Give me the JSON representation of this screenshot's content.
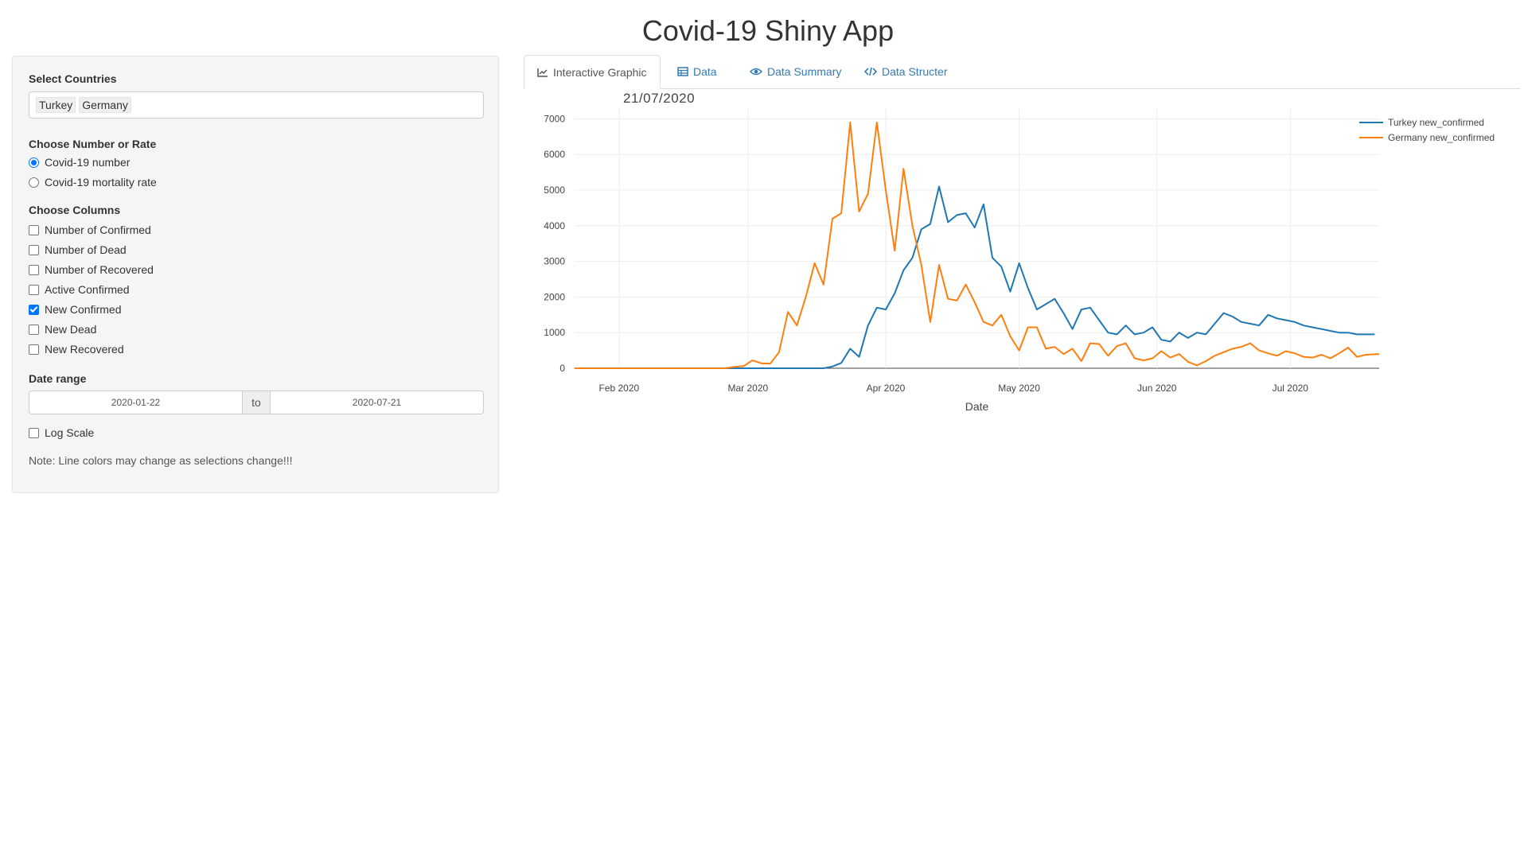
{
  "app": {
    "title": "Covid-19 Shiny App"
  },
  "sidebar": {
    "countries_label": "Select Countries",
    "countries": [
      "Turkey",
      "Germany"
    ],
    "number_rate_label": "Choose Number or Rate",
    "number_rate_options": [
      {
        "label": "Covid-19 number",
        "checked": true
      },
      {
        "label": "Covid-19 mortality rate",
        "checked": false
      }
    ],
    "columns_label": "Choose Columns",
    "columns": [
      {
        "label": "Number of Confirmed",
        "checked": false
      },
      {
        "label": "Number of Dead",
        "checked": false
      },
      {
        "label": "Number of Recovered",
        "checked": false
      },
      {
        "label": "Active Confirmed",
        "checked": false
      },
      {
        "label": "New Confirmed",
        "checked": true
      },
      {
        "label": "New Dead",
        "checked": false
      },
      {
        "label": "New Recovered",
        "checked": false
      }
    ],
    "date_range_label": "Date range",
    "date_start": "2020-01-22",
    "date_sep": "to",
    "date_end": "2020-07-21",
    "log_scale_label": "Log Scale",
    "log_scale_checked": false,
    "note": "Note: Line colors may change as selections change!!!"
  },
  "tabs": [
    {
      "label": "Interactive Graphic",
      "icon": "line-chart-icon",
      "active": true
    },
    {
      "label": "Data",
      "icon": "table-icon",
      "active": false
    },
    {
      "label": "Data Summary",
      "icon": "eye-icon",
      "active": false
    },
    {
      "label": "Data Structer",
      "icon": "code-icon",
      "active": false
    }
  ],
  "chart_date": "21/07/2020",
  "chart_data": {
    "type": "line",
    "title": "",
    "xlabel": "Date",
    "ylabel": "",
    "xlim": [
      "2020-01-22",
      "2020-07-21"
    ],
    "ylim": [
      0,
      7300
    ],
    "y_ticks": [
      0,
      1000,
      2000,
      3000,
      4000,
      5000,
      6000,
      7000
    ],
    "x_ticks": [
      {
        "date": "2020-02-01",
        "label": "Feb 2020"
      },
      {
        "date": "2020-03-01",
        "label": "Mar 2020"
      },
      {
        "date": "2020-04-01",
        "label": "Apr 2020"
      },
      {
        "date": "2020-05-01",
        "label": "May 2020"
      },
      {
        "date": "2020-06-01",
        "label": "Jun 2020"
      },
      {
        "date": "2020-07-01",
        "label": "Jul 2020"
      }
    ],
    "grid": true,
    "legend_position": "top-right",
    "series": [
      {
        "name": "Turkey new_confirmed",
        "color": "#1f77b4",
        "points": [
          [
            "2020-01-22",
            0
          ],
          [
            "2020-03-10",
            0
          ],
          [
            "2020-03-18",
            0
          ],
          [
            "2020-03-20",
            50
          ],
          [
            "2020-03-22",
            150
          ],
          [
            "2020-03-24",
            550
          ],
          [
            "2020-03-26",
            320
          ],
          [
            "2020-03-28",
            1200
          ],
          [
            "2020-03-30",
            1700
          ],
          [
            "2020-04-01",
            1650
          ],
          [
            "2020-04-03",
            2100
          ],
          [
            "2020-04-05",
            2750
          ],
          [
            "2020-04-07",
            3100
          ],
          [
            "2020-04-09",
            3900
          ],
          [
            "2020-04-11",
            4050
          ],
          [
            "2020-04-13",
            5100
          ],
          [
            "2020-04-15",
            4100
          ],
          [
            "2020-04-17",
            4300
          ],
          [
            "2020-04-19",
            4350
          ],
          [
            "2020-04-21",
            3950
          ],
          [
            "2020-04-23",
            4600
          ],
          [
            "2020-04-25",
            3100
          ],
          [
            "2020-04-27",
            2850
          ],
          [
            "2020-04-29",
            2150
          ],
          [
            "2020-05-01",
            2950
          ],
          [
            "2020-05-03",
            2250
          ],
          [
            "2020-05-05",
            1650
          ],
          [
            "2020-05-07",
            1800
          ],
          [
            "2020-05-09",
            1950
          ],
          [
            "2020-05-11",
            1550
          ],
          [
            "2020-05-13",
            1100
          ],
          [
            "2020-05-15",
            1650
          ],
          [
            "2020-05-17",
            1700
          ],
          [
            "2020-05-19",
            1350
          ],
          [
            "2020-05-21",
            1000
          ],
          [
            "2020-05-23",
            950
          ],
          [
            "2020-05-25",
            1200
          ],
          [
            "2020-05-27",
            950
          ],
          [
            "2020-05-29",
            1000
          ],
          [
            "2020-05-31",
            1150
          ],
          [
            "2020-06-02",
            800
          ],
          [
            "2020-06-04",
            750
          ],
          [
            "2020-06-06",
            1000
          ],
          [
            "2020-06-08",
            850
          ],
          [
            "2020-06-10",
            1000
          ],
          [
            "2020-06-12",
            950
          ],
          [
            "2020-06-14",
            1250
          ],
          [
            "2020-06-16",
            1550
          ],
          [
            "2020-06-18",
            1450
          ],
          [
            "2020-06-20",
            1300
          ],
          [
            "2020-06-22",
            1250
          ],
          [
            "2020-06-24",
            1200
          ],
          [
            "2020-06-26",
            1500
          ],
          [
            "2020-06-28",
            1400
          ],
          [
            "2020-06-30",
            1350
          ],
          [
            "2020-07-02",
            1300
          ],
          [
            "2020-07-04",
            1200
          ],
          [
            "2020-07-06",
            1150
          ],
          [
            "2020-07-08",
            1100
          ],
          [
            "2020-07-10",
            1050
          ],
          [
            "2020-07-12",
            1000
          ],
          [
            "2020-07-14",
            1000
          ],
          [
            "2020-07-16",
            950
          ],
          [
            "2020-07-18",
            950
          ],
          [
            "2020-07-20",
            950
          ]
        ]
      },
      {
        "name": "Germany new_confirmed",
        "color": "#ff7f0e",
        "points": [
          [
            "2020-01-22",
            0
          ],
          [
            "2020-02-25",
            0
          ],
          [
            "2020-02-27",
            40
          ],
          [
            "2020-02-29",
            60
          ],
          [
            "2020-03-02",
            220
          ],
          [
            "2020-03-04",
            140
          ],
          [
            "2020-03-06",
            130
          ],
          [
            "2020-03-08",
            450
          ],
          [
            "2020-03-10",
            1580
          ],
          [
            "2020-03-12",
            1200
          ],
          [
            "2020-03-14",
            2000
          ],
          [
            "2020-03-16",
            2950
          ],
          [
            "2020-03-18",
            2350
          ],
          [
            "2020-03-20",
            4200
          ],
          [
            "2020-03-22",
            4350
          ],
          [
            "2020-03-24",
            6900
          ],
          [
            "2020-03-26",
            4400
          ],
          [
            "2020-03-28",
            4900
          ],
          [
            "2020-03-30",
            6900
          ],
          [
            "2020-04-01",
            5000
          ],
          [
            "2020-04-03",
            3300
          ],
          [
            "2020-04-05",
            5600
          ],
          [
            "2020-04-07",
            4000
          ],
          [
            "2020-04-09",
            2900
          ],
          [
            "2020-04-11",
            1300
          ],
          [
            "2020-04-13",
            2900
          ],
          [
            "2020-04-15",
            1950
          ],
          [
            "2020-04-17",
            1900
          ],
          [
            "2020-04-19",
            2350
          ],
          [
            "2020-04-21",
            1850
          ],
          [
            "2020-04-23",
            1300
          ],
          [
            "2020-04-25",
            1200
          ],
          [
            "2020-04-27",
            1500
          ],
          [
            "2020-04-29",
            900
          ],
          [
            "2020-05-01",
            500
          ],
          [
            "2020-05-03",
            1150
          ],
          [
            "2020-05-05",
            1150
          ],
          [
            "2020-05-07",
            550
          ],
          [
            "2020-05-09",
            600
          ],
          [
            "2020-05-11",
            400
          ],
          [
            "2020-05-13",
            550
          ],
          [
            "2020-05-15",
            200
          ],
          [
            "2020-05-17",
            700
          ],
          [
            "2020-05-19",
            680
          ],
          [
            "2020-05-21",
            350
          ],
          [
            "2020-05-23",
            620
          ],
          [
            "2020-05-25",
            700
          ],
          [
            "2020-05-27",
            280
          ],
          [
            "2020-05-29",
            220
          ],
          [
            "2020-05-31",
            280
          ],
          [
            "2020-06-02",
            480
          ],
          [
            "2020-06-04",
            300
          ],
          [
            "2020-06-06",
            400
          ],
          [
            "2020-06-08",
            180
          ],
          [
            "2020-06-10",
            80
          ],
          [
            "2020-06-12",
            200
          ],
          [
            "2020-06-14",
            350
          ],
          [
            "2020-06-16",
            450
          ],
          [
            "2020-06-18",
            550
          ],
          [
            "2020-06-20",
            600
          ],
          [
            "2020-06-22",
            700
          ],
          [
            "2020-06-24",
            500
          ],
          [
            "2020-06-26",
            420
          ],
          [
            "2020-06-28",
            350
          ],
          [
            "2020-06-30",
            480
          ],
          [
            "2020-07-02",
            420
          ],
          [
            "2020-07-04",
            320
          ],
          [
            "2020-07-06",
            300
          ],
          [
            "2020-07-08",
            380
          ],
          [
            "2020-07-10",
            280
          ],
          [
            "2020-07-12",
            420
          ],
          [
            "2020-07-14",
            580
          ],
          [
            "2020-07-16",
            320
          ],
          [
            "2020-07-18",
            380
          ],
          [
            "2020-07-21",
            400
          ]
        ]
      }
    ]
  }
}
